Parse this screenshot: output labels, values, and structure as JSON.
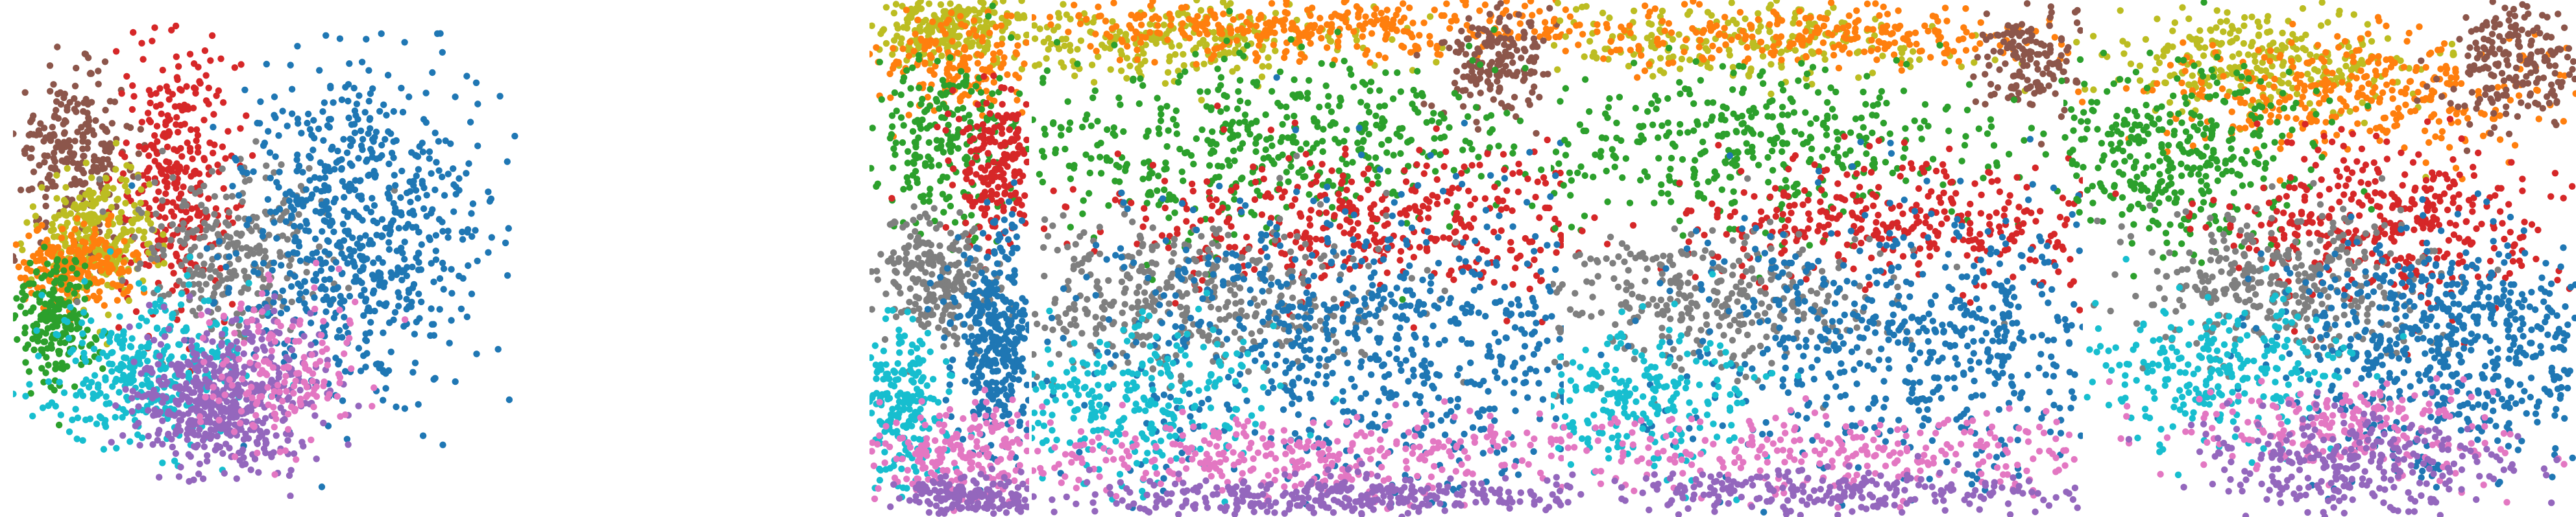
{
  "figure": {
    "background": "#ffffff"
  },
  "palette": {
    "tab-blue": "#1f77b4",
    "tab-orange": "#ff7f0e",
    "tab-green": "#2ca02c",
    "tab-red": "#d62728",
    "tab-purple": "#9467bd",
    "tab-brown": "#8c564b",
    "tab-pink": "#e377c2",
    "tab-gray": "#7f7f7f",
    "tab-olive": "#bcbd22",
    "tab-cyan": "#17becf"
  },
  "chart_data": [
    {
      "type": "scatter",
      "panel": "panel-1",
      "axes": "hidden",
      "grid": false,
      "legend": "none",
      "xlim": [
        0,
        100
      ],
      "ylim": [
        0,
        100
      ],
      "clusters": [
        {
          "color": "#8c564b",
          "center": [
            12,
            73
          ],
          "spread": [
            6,
            8
          ],
          "points": 240
        },
        {
          "color": "#d62728",
          "center": [
            32,
            68
          ],
          "spread": [
            6,
            14
          ],
          "points": 320
        },
        {
          "color": "#bcbd22",
          "center": [
            17,
            56
          ],
          "spread": [
            6,
            7
          ],
          "points": 260
        },
        {
          "color": "#ff7f0e",
          "center": [
            13,
            49
          ],
          "spread": [
            6,
            4
          ],
          "points": 220
        },
        {
          "color": "#2ca02c",
          "center": [
            8,
            38
          ],
          "spread": [
            4,
            7
          ],
          "points": 220
        },
        {
          "color": "#7f7f7f",
          "center": [
            44,
            52
          ],
          "spread": [
            10,
            9
          ],
          "points": 280
        },
        {
          "color": "#1f77b4",
          "center": [
            68,
            57
          ],
          "spread": [
            12,
            17
          ],
          "points": 700
        },
        {
          "color": "#17becf",
          "center": [
            26,
            27
          ],
          "spread": [
            10,
            8
          ],
          "points": 330
        },
        {
          "color": "#9467bd",
          "center": [
            42,
            21
          ],
          "spread": [
            9,
            8
          ],
          "points": 520
        },
        {
          "color": "#e377c2",
          "center": [
            53,
            26
          ],
          "spread": [
            8,
            8
          ],
          "points": 160
        }
      ]
    },
    {
      "type": "scatter",
      "panel": "panel-2",
      "axes": "hidden",
      "grid": false,
      "legend": "none",
      "xlim": [
        0,
        100
      ],
      "ylim": [
        0,
        100
      ],
      "clusters": [
        {
          "color": "#bcbd22",
          "center": [
            55,
            95
          ],
          "spread": [
            25,
            4
          ],
          "points": 260
        },
        {
          "color": "#ff7f0e",
          "center": [
            55,
            87
          ],
          "spread": [
            25,
            5
          ],
          "points": 180
        },
        {
          "color": "#2ca02c",
          "center": [
            48,
            73
          ],
          "spread": [
            22,
            8
          ],
          "points": 220
        },
        {
          "color": "#d62728",
          "center": [
            80,
            68
          ],
          "spread": [
            15,
            7
          ],
          "points": 200
        },
        {
          "color": "#7f7f7f",
          "center": [
            40,
            45
          ],
          "spread": [
            20,
            6
          ],
          "points": 250
        },
        {
          "color": "#1f77b4",
          "center": [
            80,
            35
          ],
          "spread": [
            14,
            12
          ],
          "points": 380
        },
        {
          "color": "#17becf",
          "center": [
            20,
            22
          ],
          "spread": [
            16,
            8
          ],
          "points": 220
        },
        {
          "color": "#e377c2",
          "center": [
            60,
            12
          ],
          "spread": [
            30,
            5
          ],
          "points": 220
        },
        {
          "color": "#9467bd",
          "center": [
            65,
            4
          ],
          "spread": [
            25,
            2
          ],
          "points": 180
        }
      ]
    },
    {
      "type": "scatter",
      "panel": "panel-3",
      "axes": "hidden",
      "grid": false,
      "legend": "none",
      "xlim": [
        0,
        100
      ],
      "ylim": [
        0,
        100
      ],
      "clusters": [
        {
          "color": "#bcbd22",
          "center": [
            24,
            92
          ],
          "spread": [
            18,
            4
          ],
          "points": 260
        },
        {
          "color": "#ff7f0e",
          "center": [
            50,
            95
          ],
          "spread": [
            32,
            3
          ],
          "points": 380
        },
        {
          "color": "#8c564b",
          "center": [
            88,
            88
          ],
          "spread": [
            6,
            6
          ],
          "points": 180
        },
        {
          "color": "#2ca02c",
          "center": [
            42,
            72
          ],
          "spread": [
            28,
            9
          ],
          "points": 520
        },
        {
          "color": "#d62728",
          "center": [
            65,
            57
          ],
          "spread": [
            26,
            7
          ],
          "points": 420
        },
        {
          "color": "#7f7f7f",
          "center": [
            28,
            42
          ],
          "spread": [
            20,
            8
          ],
          "points": 430
        },
        {
          "color": "#1f77b4",
          "center": [
            66,
            35
          ],
          "spread": [
            28,
            14
          ],
          "points": 780
        },
        {
          "color": "#17becf",
          "center": [
            18,
            22
          ],
          "spread": [
            14,
            8
          ],
          "points": 300
        },
        {
          "color": "#e377c2",
          "center": [
            52,
            12
          ],
          "spread": [
            40,
            4
          ],
          "points": 430
        },
        {
          "color": "#9467bd",
          "center": [
            55,
            4
          ],
          "spread": [
            30,
            2
          ],
          "points": 360
        }
      ]
    },
    {
      "type": "scatter",
      "panel": "panel-4",
      "axes": "hidden",
      "grid": false,
      "legend": "none",
      "xlim": [
        0,
        100
      ],
      "ylim": [
        0,
        100
      ],
      "clusters": [
        {
          "color": "#bcbd22",
          "center": [
            35,
            92
          ],
          "spread": [
            22,
            4
          ],
          "points": 240
        },
        {
          "color": "#ff7f0e",
          "center": [
            50,
            93
          ],
          "spread": [
            28,
            3
          ],
          "points": 280
        },
        {
          "color": "#8c564b",
          "center": [
            90,
            88
          ],
          "spread": [
            5,
            5
          ],
          "points": 150
        },
        {
          "color": "#2ca02c",
          "center": [
            38,
            72
          ],
          "spread": [
            26,
            8
          ],
          "points": 420
        },
        {
          "color": "#d62728",
          "center": [
            65,
            57
          ],
          "spread": [
            22,
            6
          ],
          "points": 340
        },
        {
          "color": "#7f7f7f",
          "center": [
            28,
            42
          ],
          "spread": [
            18,
            7
          ],
          "points": 340
        },
        {
          "color": "#1f77b4",
          "center": [
            68,
            34
          ],
          "spread": [
            24,
            13
          ],
          "points": 640
        },
        {
          "color": "#17becf",
          "center": [
            16,
            23
          ],
          "spread": [
            12,
            7
          ],
          "points": 230
        },
        {
          "color": "#e377c2",
          "center": [
            52,
            13
          ],
          "spread": [
            36,
            4
          ],
          "points": 320
        },
        {
          "color": "#9467bd",
          "center": [
            55,
            5
          ],
          "spread": [
            28,
            2
          ],
          "points": 260
        }
      ]
    },
    {
      "type": "scatter",
      "panel": "panel-5",
      "axes": "hidden",
      "grid": false,
      "legend": "none",
      "xlim": [
        0,
        100
      ],
      "ylim": [
        0,
        100
      ],
      "clusters": [
        {
          "color": "#bcbd22",
          "center": [
            40,
            88
          ],
          "spread": [
            16,
            5
          ],
          "points": 280
        },
        {
          "color": "#ff7f0e",
          "center": [
            55,
            82
          ],
          "spread": [
            22,
            6
          ],
          "points": 340
        },
        {
          "color": "#8c564b",
          "center": [
            88,
            88
          ],
          "spread": [
            7,
            6
          ],
          "points": 200
        },
        {
          "color": "#2ca02c",
          "center": [
            22,
            70
          ],
          "spread": [
            13,
            9
          ],
          "points": 380
        },
        {
          "color": "#d62728",
          "center": [
            64,
            57
          ],
          "spread": [
            16,
            8
          ],
          "points": 380
        },
        {
          "color": "#7f7f7f",
          "center": [
            42,
            45
          ],
          "spread": [
            14,
            7
          ],
          "points": 360
        },
        {
          "color": "#1f77b4",
          "center": [
            75,
            33
          ],
          "spread": [
            16,
            11
          ],
          "points": 640
        },
        {
          "color": "#17becf",
          "center": [
            30,
            29
          ],
          "spread": [
            12,
            7
          ],
          "points": 260
        },
        {
          "color": "#e377c2",
          "center": [
            56,
            17
          ],
          "spread": [
            16,
            5
          ],
          "points": 220
        },
        {
          "color": "#9467bd",
          "center": [
            58,
            10
          ],
          "spread": [
            16,
            5
          ],
          "points": 300
        }
      ]
    }
  ]
}
